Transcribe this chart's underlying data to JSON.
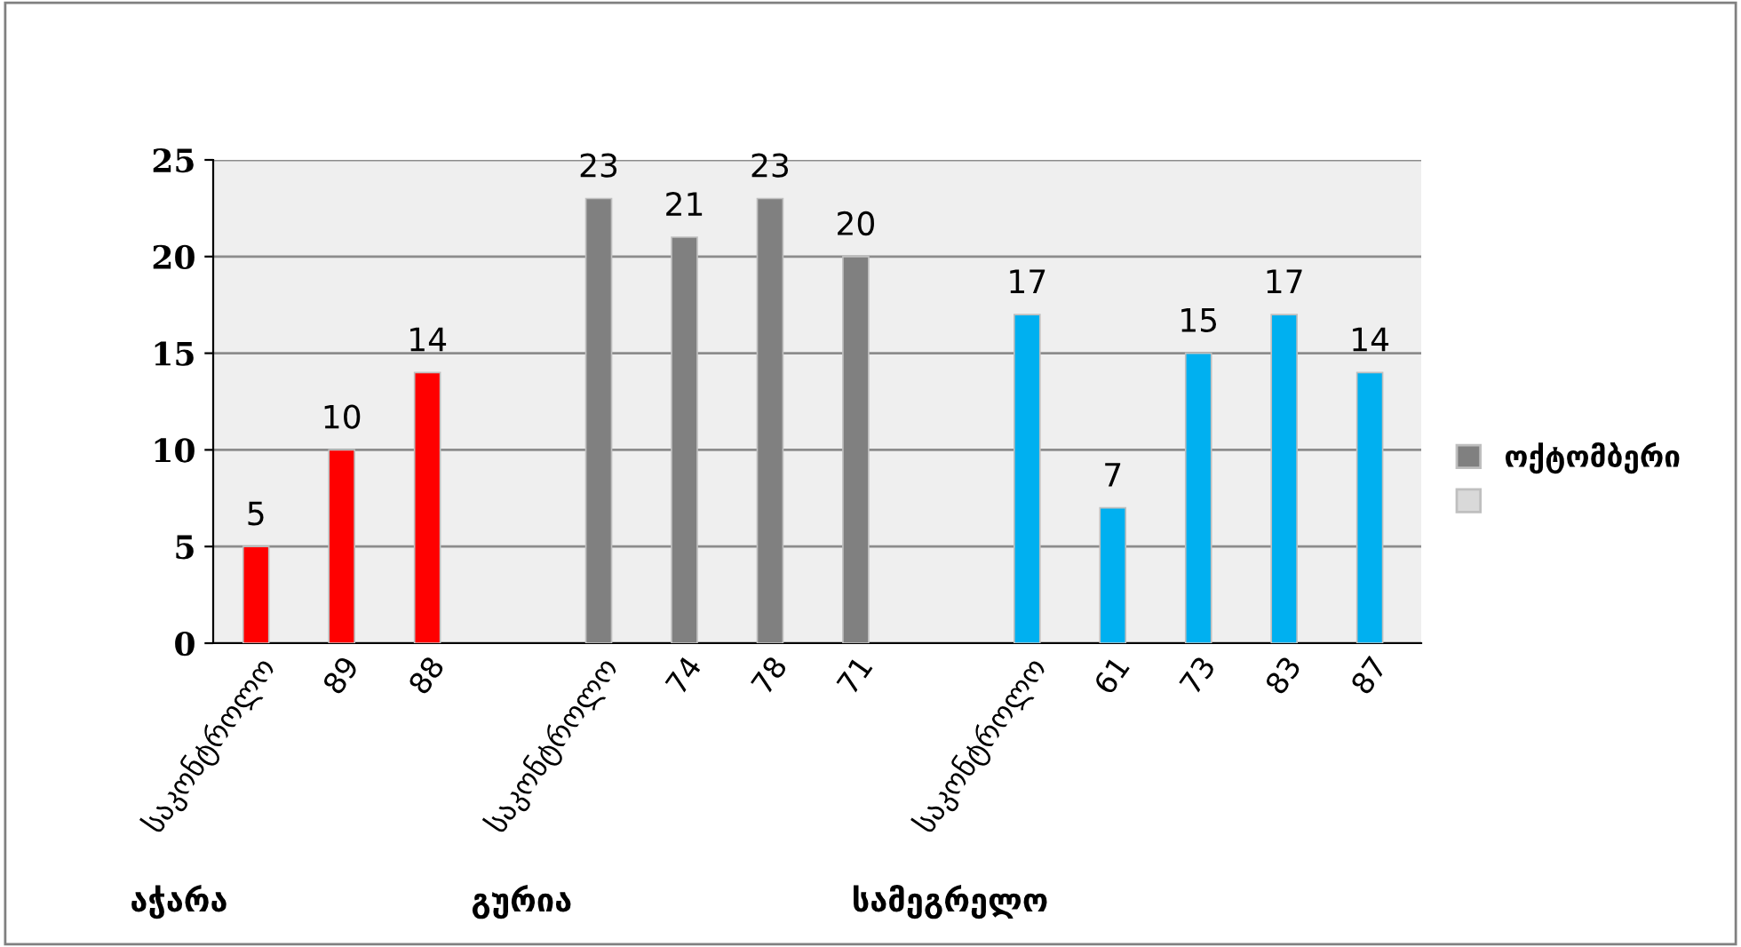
{
  "chart_data": {
    "type": "bar",
    "categories": [
      "საკონტროლო",
      "89",
      "88",
      null,
      "საკონტროლო",
      "74",
      "78",
      "71",
      null,
      "საკონტროლო",
      "61",
      "73",
      "83",
      "87"
    ],
    "series": [
      {
        "name": "ოქტომბერი",
        "color": "#808080",
        "colors": [
          "#ff0000",
          "#ff0000",
          "#ff0000",
          null,
          "#808080",
          "#808080",
          "#808080",
          "#808080",
          null,
          "#00b0f0",
          "#00b0f0",
          "#00b0f0",
          "#00b0f0",
          "#00b0f0"
        ],
        "values": [
          5,
          10,
          14,
          null,
          23,
          21,
          23,
          20,
          null,
          17,
          7,
          15,
          17,
          14
        ]
      },
      {
        "color": "#d9d9d9",
        "values": [
          null,
          null,
          null,
          null,
          null,
          null,
          null,
          null,
          null,
          null,
          null,
          null,
          null,
          null
        ]
      }
    ],
    "annotations": [
      "აჭარა",
      "გურია",
      "სამეგრელო"
    ],
    "ylim": [
      0,
      25
    ],
    "yticks": [
      0,
      5,
      10,
      15,
      20,
      25
    ],
    "grid": "y",
    "legend": "right",
    "data_labels": true
  }
}
